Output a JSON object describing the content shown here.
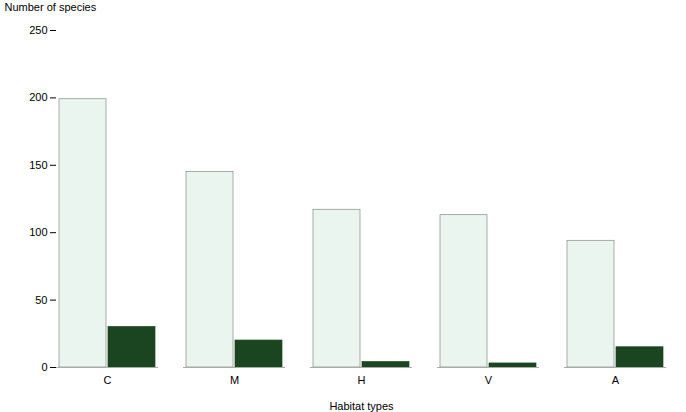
{
  "chart_data": {
    "type": "bar",
    "xlabel": "Habitat types",
    "ylabel": "Number of species",
    "categories": [
      "C",
      "M",
      "H",
      "V",
      "A"
    ],
    "series": [
      {
        "color": "#eaf5f0",
        "values": [
          199,
          145,
          117,
          113,
          94
        ]
      },
      {
        "color": "#1a4520",
        "values": [
          30,
          20,
          4,
          3,
          15
        ]
      }
    ],
    "ylim": [
      0,
      250
    ],
    "yticks": [
      0,
      50,
      100,
      150,
      200,
      250
    ],
    "grid": false
  }
}
